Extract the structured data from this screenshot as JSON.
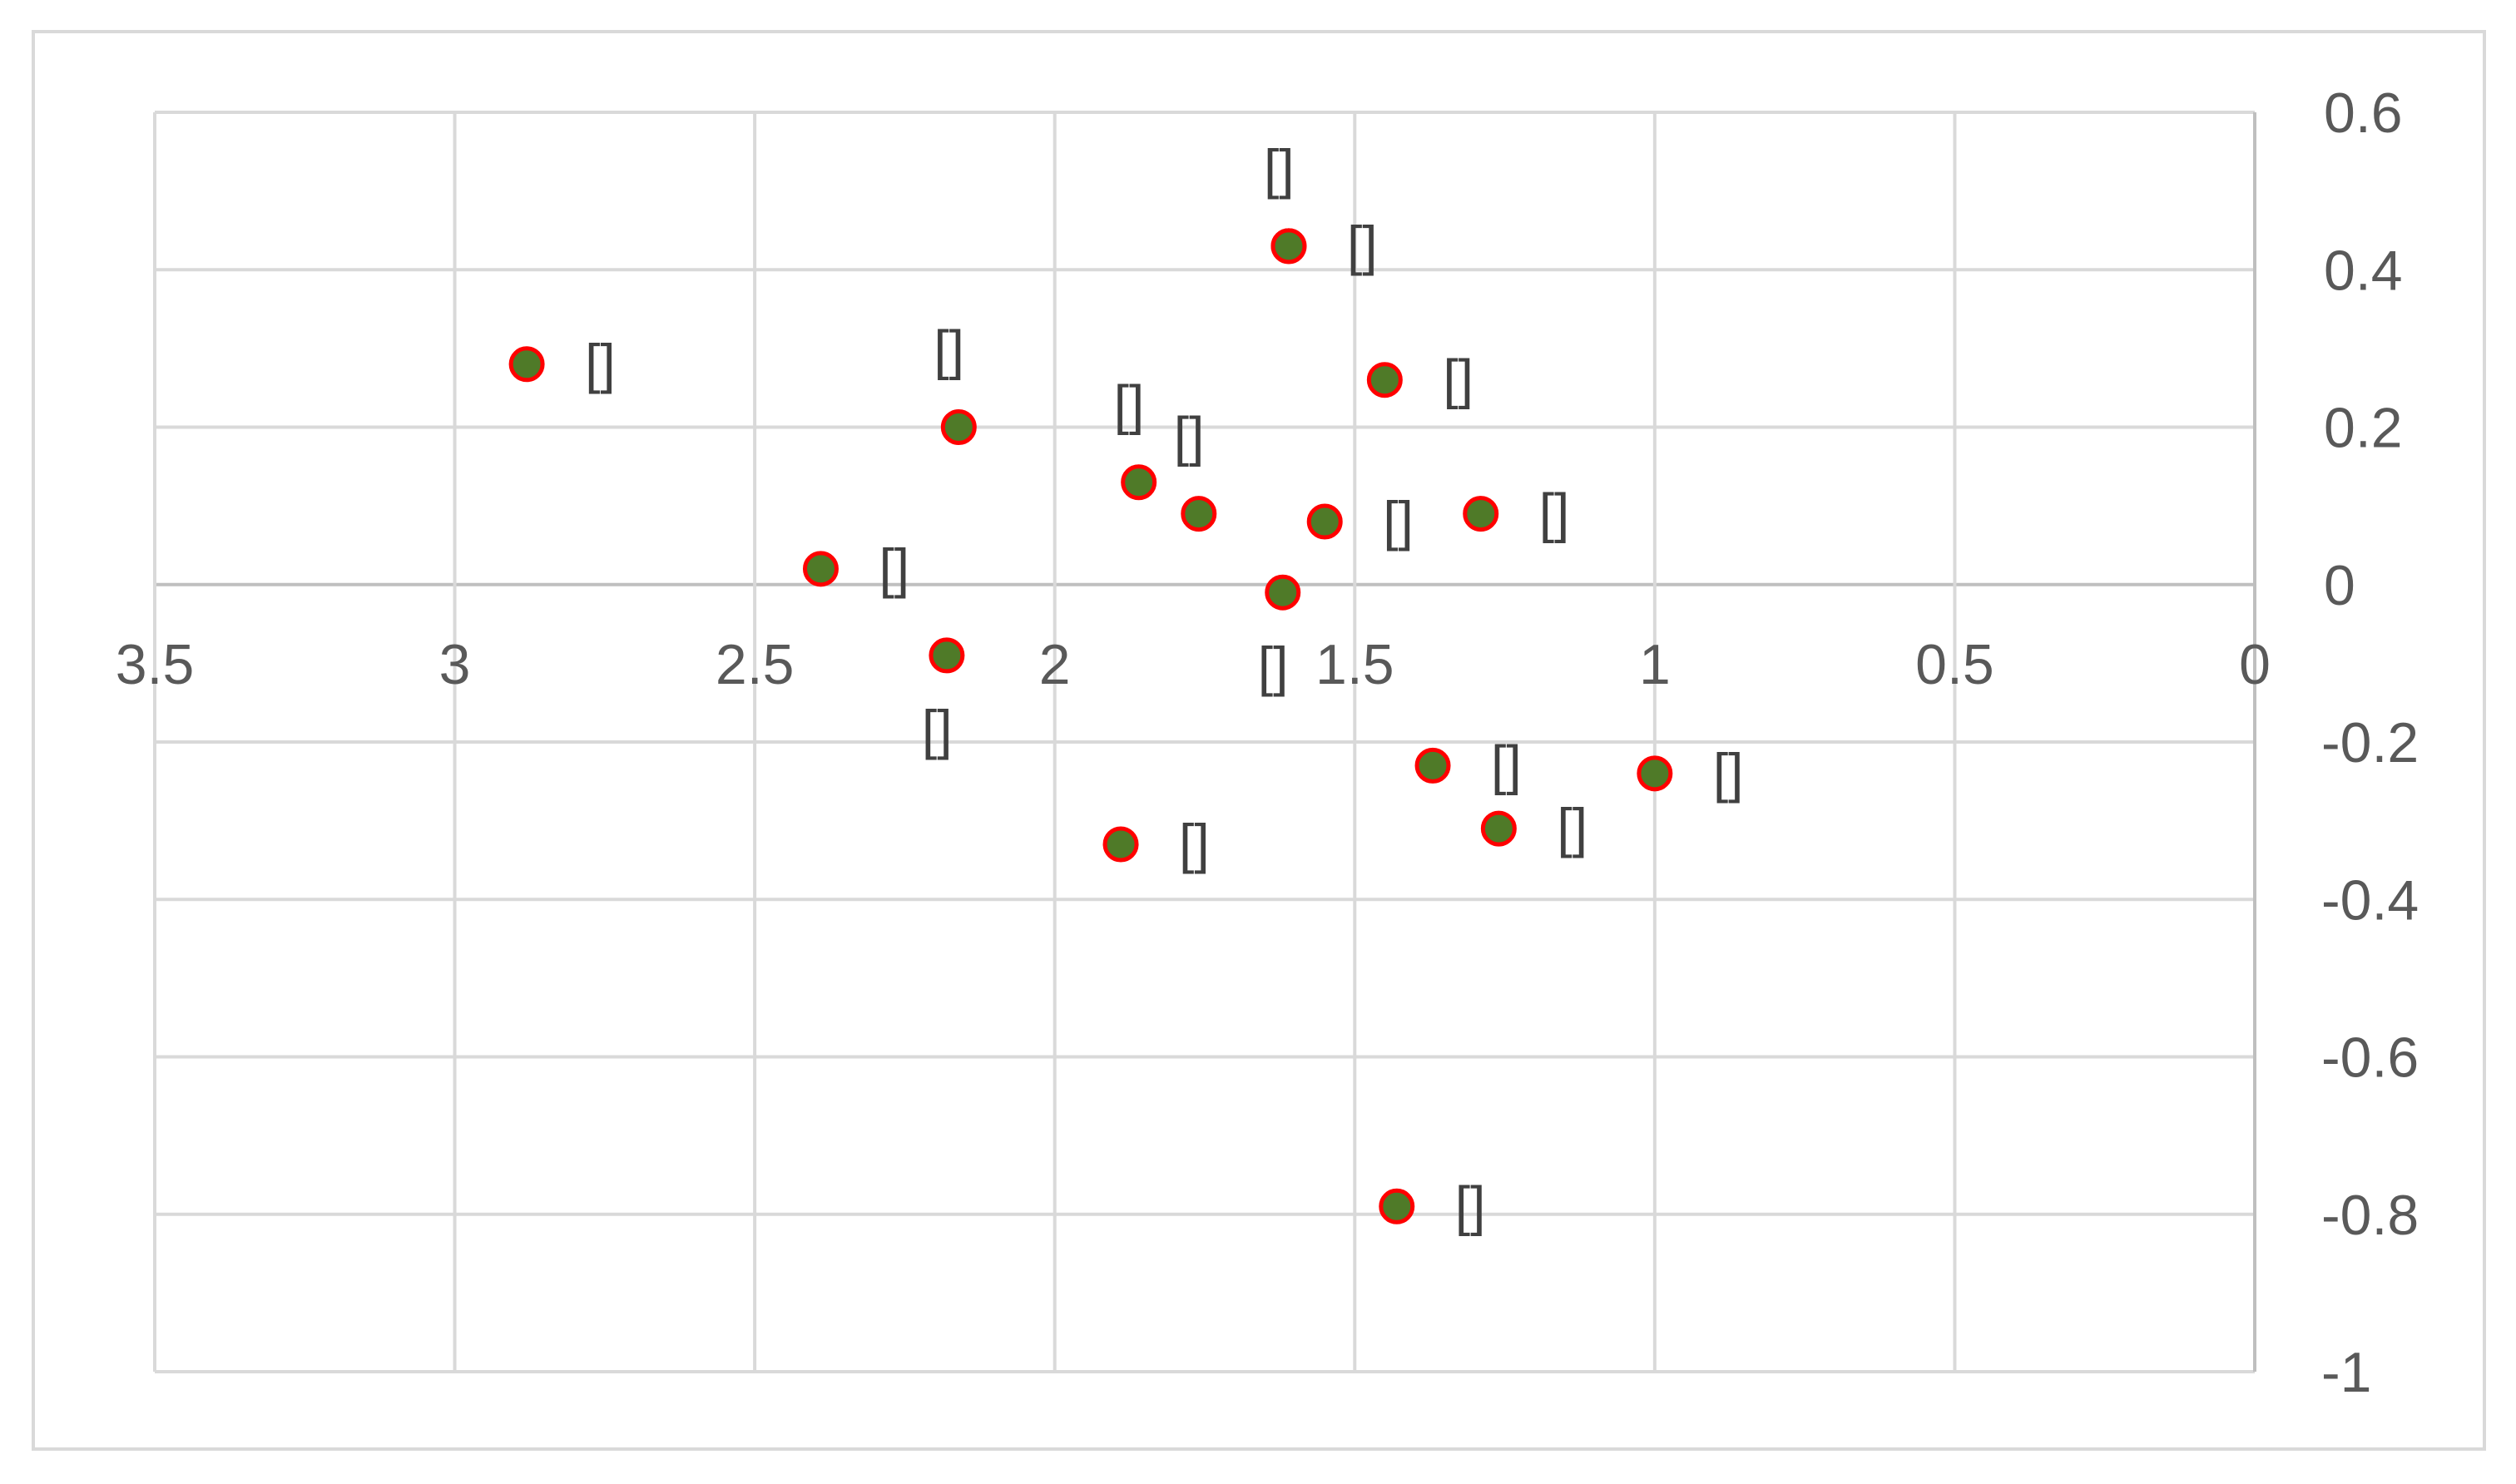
{
  "chart_data": {
    "type": "scatter",
    "title": "",
    "xlabel": "",
    "ylabel": "",
    "x_reversed": true,
    "xlim": [
      0,
      3.5
    ],
    "ylim": [
      -1,
      0.6
    ],
    "x_ticks": [
      "3.5",
      "3",
      "2.5",
      "2",
      "1.5",
      "1",
      "0.5",
      "0"
    ],
    "x_tick_values": [
      3.5,
      3,
      2.5,
      2,
      1.5,
      1,
      0.5,
      0
    ],
    "y_ticks": [
      "0.6",
      "0.4",
      "0.2",
      "0",
      "-0.2",
      "-0.4",
      "-0.6",
      "-0.8",
      "-1"
    ],
    "y_tick_values": [
      0.6,
      0.4,
      0.2,
      0,
      -0.2,
      -0.4,
      -0.6,
      -0.8,
      -1
    ],
    "grid": true,
    "marker_fill": "#4f7a28",
    "marker_edge": "#ff0000",
    "series": [
      {
        "points": [
          {
            "x": 1.61,
            "y": 0.43,
            "label": "[]",
            "label_pos": "top"
          },
          {
            "x": 1.61,
            "y": 0.43,
            "label": "[]",
            "label_pos": "right"
          },
          {
            "x": 2.88,
            "y": 0.28,
            "label": "[]",
            "label_pos": "right"
          },
          {
            "x": 2.16,
            "y": 0.2,
            "label": "[]",
            "label_pos": "top"
          },
          {
            "x": 1.45,
            "y": 0.26,
            "label": "[]",
            "label_pos": "right"
          },
          {
            "x": 1.86,
            "y": 0.13,
            "label": "[]",
            "label_pos": "top"
          },
          {
            "x": 1.76,
            "y": 0.09,
            "label": "[]",
            "label_pos": "top"
          },
          {
            "x": 1.55,
            "y": 0.08,
            "label": "[]",
            "label_pos": "right"
          },
          {
            "x": 1.29,
            "y": 0.09,
            "label": "[]",
            "label_pos": "right"
          },
          {
            "x": 2.39,
            "y": 0.02,
            "label": "[]",
            "label_pos": "right"
          },
          {
            "x": 1.62,
            "y": -0.01,
            "label": "[]",
            "label_pos": "bottom"
          },
          {
            "x": 2.18,
            "y": -0.09,
            "label": "[]",
            "label_pos": "bottom"
          },
          {
            "x": 1.37,
            "y": -0.23,
            "label": "[]",
            "label_pos": "right"
          },
          {
            "x": 1.0,
            "y": -0.24,
            "label": "[]",
            "label_pos": "right"
          },
          {
            "x": 1.26,
            "y": -0.31,
            "label": "[]",
            "label_pos": "right"
          },
          {
            "x": 1.89,
            "y": -0.33,
            "label": "[]",
            "label_pos": "right"
          },
          {
            "x": 1.43,
            "y": -0.79,
            "label": "[]",
            "label_pos": "right"
          }
        ]
      }
    ]
  }
}
